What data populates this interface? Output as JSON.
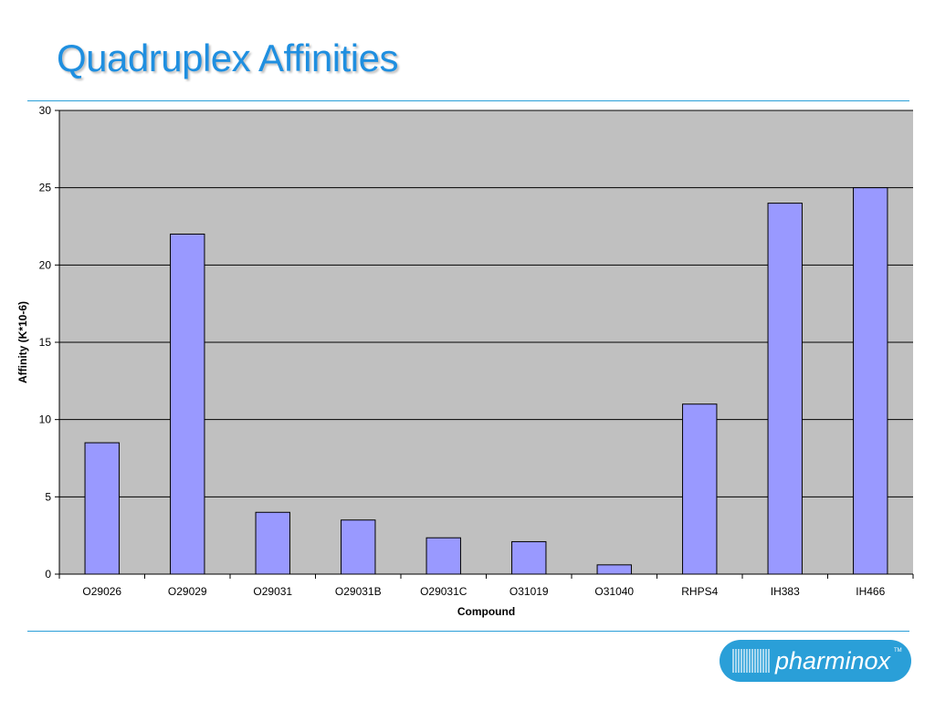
{
  "slide": {
    "title": "Quadruplex Affinities",
    "title_color": "#1f8fe0",
    "rule_color": "#2a9fd8"
  },
  "logo": {
    "text": "pharminox",
    "trademark": "TM",
    "color": "#2a9fd8"
  },
  "chart_data": {
    "type": "bar",
    "categories": [
      "O29026",
      "O29029",
      "O29031",
      "O29031B",
      "O29031C",
      "O31019",
      "O31040",
      "RHPS4",
      "IH383",
      "IH466"
    ],
    "values": [
      8.5,
      22,
      4,
      3.5,
      2.35,
      2.1,
      0.6,
      11,
      24,
      25
    ],
    "xlabel": "Compound",
    "ylabel": "Affinity (K*10-6)",
    "ylim": [
      0,
      30
    ],
    "yticks": [
      0,
      5,
      10,
      15,
      20,
      25,
      30
    ],
    "grid": true,
    "legend": "none",
    "bar_color": "#9999ff",
    "plot_background": "#c0c0c0"
  }
}
